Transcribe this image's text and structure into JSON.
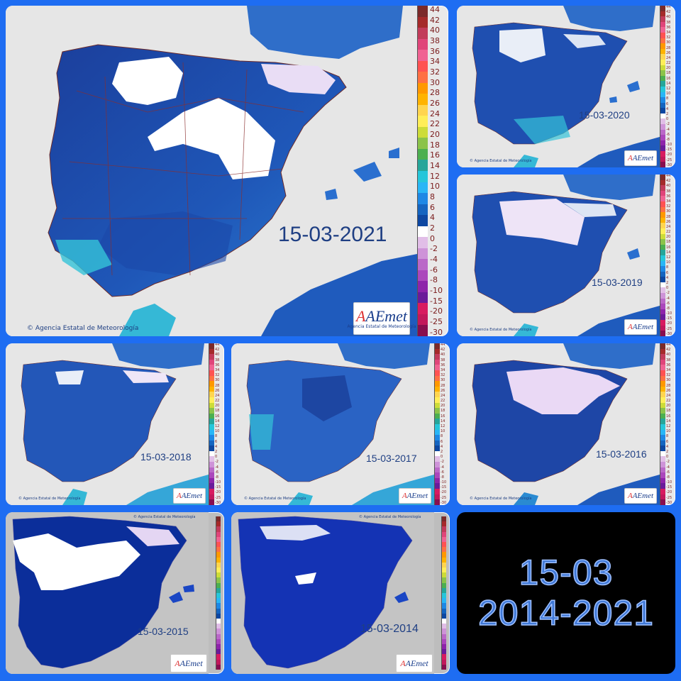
{
  "collage": {
    "background_color": "#1e6df2",
    "summary_line1": "15-03",
    "summary_line2": "2014-2021"
  },
  "legend_palette": [
    "#7b2a2a",
    "#a52a2a",
    "#c23b5a",
    "#e0457a",
    "#f06292",
    "#ff5252",
    "#ff7043",
    "#ff9800",
    "#ffb300",
    "#ffd54f",
    "#ffee58",
    "#cddc39",
    "#8bc34a",
    "#4caf50",
    "#26a69a",
    "#26c6da",
    "#29b6f6",
    "#1e88e5",
    "#1565c0",
    "#0d47a1",
    "#ffffff",
    "#e1bee7",
    "#ce93d8",
    "#ba68c8",
    "#ab47bc",
    "#8e24aa",
    "#6a1b9a",
    "#d81b60",
    "#c2185b",
    "#880e4f"
  ],
  "legend_ticks_large": [
    "44",
    "42",
    "40",
    "38",
    "36",
    "34",
    "32",
    "30",
    "28",
    "26",
    "24",
    "22",
    "20",
    "18",
    "16",
    "14",
    "12",
    "10",
    "8",
    "6",
    "4",
    "2",
    "0",
    "-2",
    "-4",
    "-6",
    "-8",
    "-10",
    "-15",
    "-20",
    "-25",
    "-30"
  ],
  "legend_ticks_small": [
    "44",
    "42",
    "40",
    "38",
    "36",
    "34",
    "32",
    "30",
    "28",
    "26",
    "24",
    "22",
    "20",
    "18",
    "16",
    "14",
    "12",
    "10",
    "8",
    "6",
    "4",
    "2",
    "0",
    "-2",
    "-4",
    "-6",
    "-8",
    "-10",
    "-15",
    "-20",
    "-25",
    "-30"
  ],
  "logo": {
    "brand": "AEmet",
    "sub": "Agencia Estatal de Meteorología"
  },
  "credit": "© Agencia Estatal de Meteorología",
  "maps": [
    {
      "id": "2021",
      "date": "15-03-2021"
    },
    {
      "id": "2020",
      "date": "15-03-2020"
    },
    {
      "id": "2019",
      "date": "15-03-2019"
    },
    {
      "id": "2018",
      "date": "15-03-2018"
    },
    {
      "id": "2017",
      "date": "15-03-2017"
    },
    {
      "id": "2016",
      "date": "15-03-2016"
    },
    {
      "id": "2015",
      "date": "15-03-2015"
    },
    {
      "id": "2014",
      "date": "15-03-2014"
    }
  ]
}
